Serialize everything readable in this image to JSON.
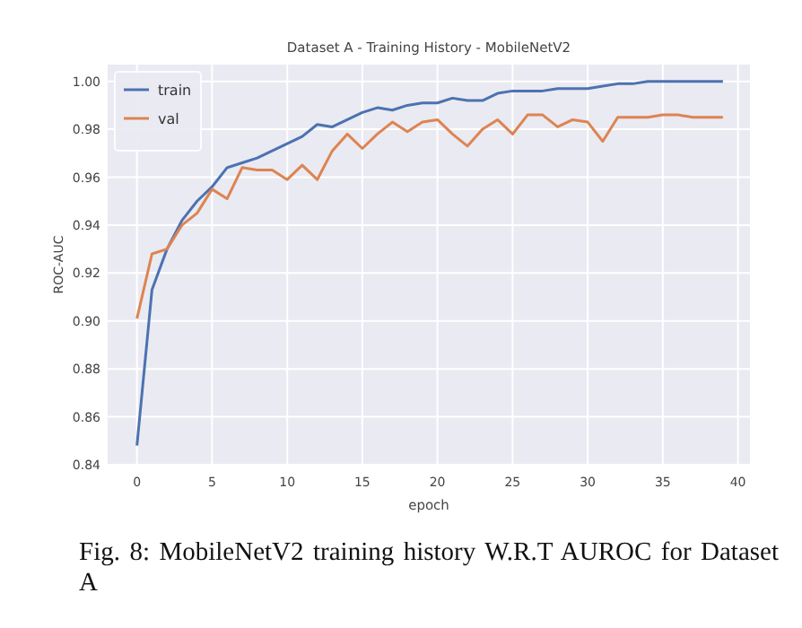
{
  "chart_data": {
    "type": "line",
    "title": "Dataset A - Training History - MobileNetV2",
    "xlabel": "epoch",
    "ylabel": "ROC-AUC",
    "annotations": [
      "Fig. 8: MobileNetV2 training history W.R.T AUROC for Dataset A"
    ],
    "x": [
      0,
      1,
      2,
      3,
      4,
      5,
      6,
      7,
      8,
      9,
      10,
      11,
      12,
      13,
      14,
      15,
      16,
      17,
      18,
      19,
      20,
      21,
      22,
      23,
      24,
      25,
      26,
      27,
      28,
      29,
      30,
      31,
      32,
      33,
      34,
      35,
      36,
      37,
      38,
      39
    ],
    "series": [
      {
        "name": "train",
        "color": "#4c72b0",
        "values": [
          0.848,
          0.913,
          0.93,
          0.942,
          0.95,
          0.956,
          0.964,
          0.966,
          0.968,
          0.971,
          0.974,
          0.977,
          0.982,
          0.981,
          0.984,
          0.987,
          0.989,
          0.988,
          0.99,
          0.991,
          0.991,
          0.993,
          0.992,
          0.992,
          0.995,
          0.996,
          0.996,
          0.996,
          0.997,
          0.997,
          0.997,
          0.998,
          0.999,
          0.999,
          1.0,
          1.0,
          1.0,
          1.0,
          1.0,
          1.0
        ]
      },
      {
        "name": "val",
        "color": "#dd8452",
        "values": [
          0.901,
          0.928,
          0.93,
          0.94,
          0.945,
          0.955,
          0.951,
          0.964,
          0.963,
          0.963,
          0.959,
          0.965,
          0.959,
          0.971,
          0.978,
          0.972,
          0.978,
          0.983,
          0.979,
          0.983,
          0.984,
          0.978,
          0.973,
          0.98,
          0.984,
          0.978,
          0.986,
          0.986,
          0.981,
          0.984,
          0.983,
          0.975,
          0.985,
          0.985,
          0.985,
          0.986,
          0.986,
          0.985,
          0.985,
          0.985
        ]
      }
    ],
    "xlim": [
      -1.95,
      40.8
    ],
    "ylim": [
      0.84,
      1.007
    ],
    "xticks": [
      0,
      5,
      10,
      15,
      20,
      25,
      30,
      35,
      40
    ],
    "yticks": [
      {
        "value": 0.84,
        "label": "0.84"
      },
      {
        "value": 0.86,
        "label": "0.86"
      },
      {
        "value": 0.88,
        "label": "0.88"
      },
      {
        "value": 0.9,
        "label": "0.90"
      },
      {
        "value": 0.92,
        "label": "0.92"
      },
      {
        "value": 0.94,
        "label": "0.94"
      },
      {
        "value": 0.96,
        "label": "0.96"
      },
      {
        "value": 0.98,
        "label": "0.98"
      },
      {
        "value": 1,
        "label": "1.00"
      }
    ],
    "grid": true,
    "legend": "top left",
    "marker": "none",
    "line_style": "solid"
  }
}
